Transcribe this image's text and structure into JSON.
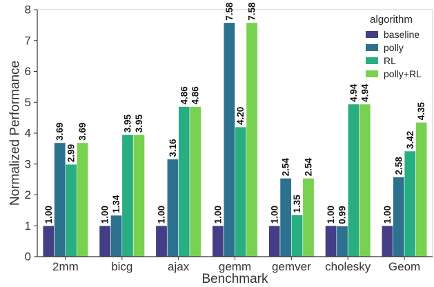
{
  "chart_data": {
    "type": "bar",
    "xlabel": "Benchmark",
    "ylabel": "Normalized Performance",
    "ylim": [
      0,
      8
    ],
    "yticks": [
      "0",
      "1",
      "2",
      "3",
      "4",
      "5",
      "6",
      "7",
      "8"
    ],
    "categories": [
      "2mm",
      "bicg",
      "ajax",
      "gemm",
      "gemver",
      "cholesky",
      "Geom"
    ],
    "legend": {
      "title": "algorithm",
      "position": "top-right"
    },
    "series": [
      {
        "name": "baseline",
        "color": "#433e85",
        "values": [
          1.0,
          1.0,
          1.0,
          1.0,
          1.0,
          1.0,
          1.0
        ],
        "labels": [
          "1.00",
          "1.00",
          "1.00",
          "1.00",
          "1.00",
          "1.00",
          "1.00"
        ]
      },
      {
        "name": "polly",
        "color": "#2c728e",
        "values": [
          3.69,
          1.34,
          3.16,
          7.58,
          2.54,
          0.99,
          2.58
        ],
        "labels": [
          "3.69",
          "1.34",
          "3.16",
          "7.58",
          "2.54",
          "0.99",
          "2.58"
        ]
      },
      {
        "name": "RL",
        "color": "#28ae80",
        "values": [
          2.99,
          3.95,
          4.86,
          4.2,
          1.35,
          4.94,
          3.42
        ],
        "labels": [
          "2.99",
          "3.95",
          "4.86",
          "4.20",
          "1.35",
          "4.94",
          "3.42"
        ]
      },
      {
        "name": "polly+RL",
        "color": "#79d151",
        "values": [
          3.69,
          3.95,
          4.86,
          7.58,
          2.54,
          4.94,
          4.35
        ],
        "labels": [
          "3.69",
          "3.95",
          "4.86",
          "7.58",
          "2.54",
          "4.94",
          "4.35"
        ]
      }
    ]
  }
}
